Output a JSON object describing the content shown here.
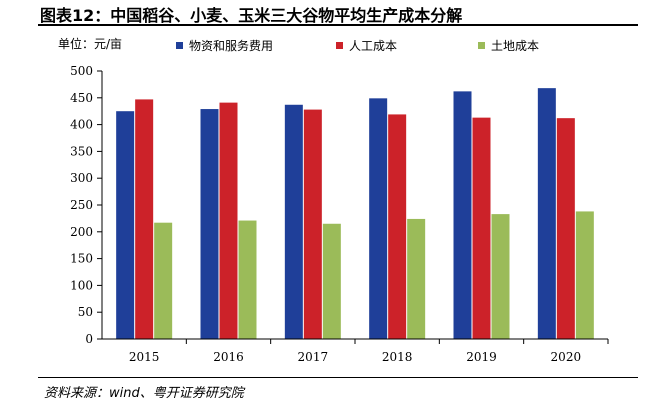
{
  "header": {
    "title": "图表12：中国稻谷、小麦、玉米三大谷物平均生产成本分解"
  },
  "footer": {
    "source": "资料来源：wind、粤开证券研究院"
  },
  "chart_data": {
    "type": "bar",
    "unit_label": "单位：元/亩",
    "categories": [
      "2015",
      "2016",
      "2017",
      "2018",
      "2019",
      "2020"
    ],
    "series": [
      {
        "name": "物资和服务费用",
        "color": "#1f3f99",
        "values": [
          425,
          429,
          437,
          449,
          462,
          468
        ]
      },
      {
        "name": "人工成本",
        "color": "#cc2229",
        "values": [
          447,
          441,
          428,
          419,
          413,
          412
        ]
      },
      {
        "name": "土地成本",
        "color": "#9bbb59",
        "values": [
          217,
          221,
          215,
          224,
          233,
          238
        ]
      }
    ],
    "ylim": [
      0,
      500
    ],
    "yticks": [
      0,
      50,
      100,
      150,
      200,
      250,
      300,
      350,
      400,
      450,
      500
    ],
    "grid": false,
    "legend_position": "top"
  }
}
